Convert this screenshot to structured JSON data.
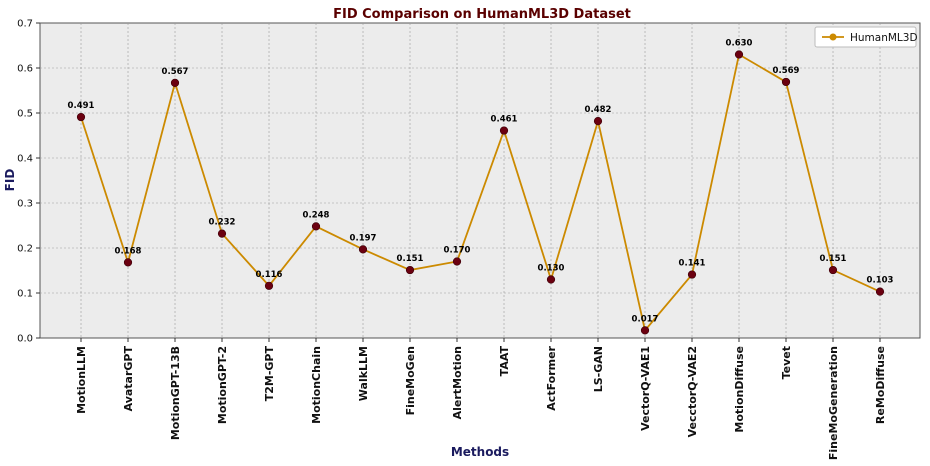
{
  "chart_data": {
    "type": "line",
    "title": "FID Comparison on HumanML3D Dataset",
    "xlabel": "Methods",
    "ylabel": "FID",
    "ylim": [
      0,
      0.7
    ],
    "yticks": [
      "0.0",
      "0.1",
      "0.2",
      "0.3",
      "0.4",
      "0.5",
      "0.6",
      "0.7"
    ],
    "grid": true,
    "legend_position": "top-right",
    "categories": [
      "MotionLLM",
      "AvatarGPT",
      "MotionGPT-13B",
      "MotionGPT-2",
      "T2M-GPT",
      "MotionChain",
      "WalkLLM",
      "FineMoGen",
      "AlertMotion",
      "TAAT",
      "ActFormer",
      "LS-GAN",
      "VectorQ-VAE1",
      "VecctorQ-VAE2",
      "MotionDiffuse",
      "Tevet",
      "FineMoGeneration",
      "ReMoDiffuse"
    ],
    "series": [
      {
        "name": "HumanML3D",
        "values": [
          0.491,
          0.168,
          0.567,
          0.232,
          0.116,
          0.248,
          0.197,
          0.151,
          0.17,
          0.461,
          0.13,
          0.482,
          0.017,
          0.141,
          0.63,
          0.569,
          0.151,
          0.103
        ],
        "labels": [
          "0.491",
          "0.168",
          "0.567",
          "0.232",
          "0.116",
          "0.248",
          "0.197",
          "0.151",
          "0.170",
          "0.461",
          "0.130",
          "0.482",
          "0.017",
          "0.141",
          "0.630",
          "0.569",
          "0.151",
          "0.103"
        ]
      }
    ],
    "colors": {
      "line": "#cc8a00",
      "marker": "#6b0010",
      "title": "#5a0000",
      "axis_title": "#1a1a5e",
      "plot_bg": "#ececec"
    }
  }
}
